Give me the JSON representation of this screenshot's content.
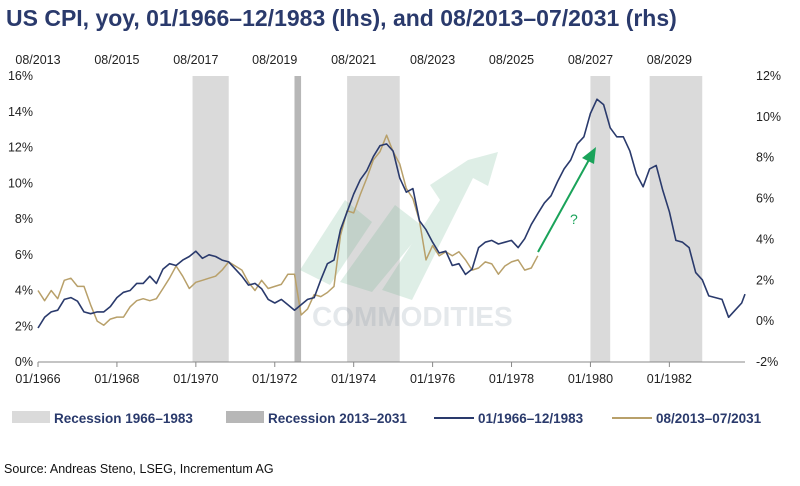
{
  "title": "US CPI, yoy, 01/1966–12/1983 (lhs), and 08/2013–07/2031 (rhs)",
  "source": "Source: Andreas Steno, LSEG, Incrementum AG",
  "watermark": "COMMODITIES",
  "annotation": "?",
  "colors": {
    "title": "#2a3a6c",
    "series_1966": "#2a3a6c",
    "series_2013": "#b8a06a",
    "recession_1966": "#dadada",
    "recession_2013": "#b7b7b7",
    "arrow": "#1aa35a"
  },
  "chart_data": {
    "type": "line",
    "x_bottom": {
      "range": [
        "01/1966",
        "12/1983"
      ],
      "ticks": [
        "01/1966",
        "01/1968",
        "01/1970",
        "01/1972",
        "01/1974",
        "01/1976",
        "01/1978",
        "01/1980",
        "01/1982"
      ]
    },
    "x_top": {
      "range": [
        "08/2013",
        "07/2031"
      ],
      "ticks": [
        "08/2013",
        "08/2015",
        "08/2017",
        "08/2019",
        "08/2021",
        "08/2023",
        "08/2025",
        "08/2027",
        "08/2029"
      ]
    },
    "y_left": {
      "range": [
        0,
        16
      ],
      "ticks": [
        "0%",
        "2%",
        "4%",
        "6%",
        "8%",
        "10%",
        "12%",
        "14%",
        "16%"
      ]
    },
    "y_right": {
      "range": [
        -2,
        12
      ],
      "ticks": [
        "-2%",
        "0%",
        "2%",
        "4%",
        "6%",
        "8%",
        "10%",
        "12%"
      ]
    },
    "recessions_1966": [
      [
        "12/1969",
        "11/1970"
      ],
      [
        "11/1973",
        "03/1975"
      ],
      [
        "01/1980",
        "07/1980"
      ],
      [
        "07/1981",
        "11/1982"
      ]
    ],
    "recessions_2013": [
      [
        "02/2020",
        "04/2020"
      ]
    ],
    "series": [
      {
        "name": "01/1966–12/1983",
        "axis": "left",
        "points": [
          [
            "1966-01",
            1.9
          ],
          [
            "1966-03",
            2.5
          ],
          [
            "1966-05",
            2.8
          ],
          [
            "1966-07",
            2.9
          ],
          [
            "1966-09",
            3.5
          ],
          [
            "1966-11",
            3.6
          ],
          [
            "1967-01",
            3.4
          ],
          [
            "1967-03",
            2.8
          ],
          [
            "1967-05",
            2.7
          ],
          [
            "1967-07",
            2.8
          ],
          [
            "1967-09",
            2.8
          ],
          [
            "1967-11",
            3.1
          ],
          [
            "1968-01",
            3.6
          ],
          [
            "1968-03",
            3.9
          ],
          [
            "1968-05",
            4.0
          ],
          [
            "1968-07",
            4.4
          ],
          [
            "1968-09",
            4.4
          ],
          [
            "1968-11",
            4.8
          ],
          [
            "1969-01",
            4.4
          ],
          [
            "1969-03",
            5.2
          ],
          [
            "1969-05",
            5.5
          ],
          [
            "1969-07",
            5.4
          ],
          [
            "1969-09",
            5.7
          ],
          [
            "1969-11",
            5.9
          ],
          [
            "1970-01",
            6.2
          ],
          [
            "1970-03",
            5.8
          ],
          [
            "1970-05",
            6.0
          ],
          [
            "1970-07",
            5.9
          ],
          [
            "1970-09",
            5.7
          ],
          [
            "1970-11",
            5.6
          ],
          [
            "1971-01",
            5.2
          ],
          [
            "1971-03",
            4.8
          ],
          [
            "1971-05",
            4.3
          ],
          [
            "1971-07",
            4.4
          ],
          [
            "1971-09",
            4.1
          ],
          [
            "1971-11",
            3.5
          ],
          [
            "1972-01",
            3.3
          ],
          [
            "1972-03",
            3.5
          ],
          [
            "1972-05",
            3.2
          ],
          [
            "1972-07",
            2.9
          ],
          [
            "1972-09",
            3.2
          ],
          [
            "1972-11",
            3.5
          ],
          [
            "1973-01",
            3.6
          ],
          [
            "1973-03",
            4.6
          ],
          [
            "1973-05",
            5.5
          ],
          [
            "1973-07",
            5.7
          ],
          [
            "1973-09",
            7.4
          ],
          [
            "1973-11",
            8.4
          ],
          [
            "1974-01",
            9.4
          ],
          [
            "1974-03",
            10.2
          ],
          [
            "1974-05",
            10.7
          ],
          [
            "1974-07",
            11.5
          ],
          [
            "1974-09",
            12.1
          ],
          [
            "1974-11",
            12.2
          ],
          [
            "1975-01",
            11.8
          ],
          [
            "1975-03",
            10.3
          ],
          [
            "1975-05",
            9.5
          ],
          [
            "1975-07",
            9.7
          ],
          [
            "1975-09",
            7.9
          ],
          [
            "1975-11",
            7.4
          ],
          [
            "1976-01",
            6.7
          ],
          [
            "1976-03",
            6.1
          ],
          [
            "1976-05",
            6.2
          ],
          [
            "1976-07",
            5.4
          ],
          [
            "1976-09",
            5.5
          ],
          [
            "1976-11",
            4.9
          ],
          [
            "1977-01",
            5.2
          ],
          [
            "1977-03",
            6.4
          ],
          [
            "1977-05",
            6.7
          ],
          [
            "1977-07",
            6.8
          ],
          [
            "1977-09",
            6.6
          ],
          [
            "1977-11",
            6.7
          ],
          [
            "1978-01",
            6.8
          ],
          [
            "1978-03",
            6.4
          ],
          [
            "1978-05",
            6.9
          ],
          [
            "1978-07",
            7.7
          ],
          [
            "1978-09",
            8.3
          ],
          [
            "1978-11",
            8.9
          ],
          [
            "1979-01",
            9.3
          ],
          [
            "1979-03",
            10.1
          ],
          [
            "1979-05",
            10.8
          ],
          [
            "1979-07",
            11.3
          ],
          [
            "1979-09",
            12.2
          ],
          [
            "1979-11",
            12.6
          ],
          [
            "1980-01",
            13.9
          ],
          [
            "1980-03",
            14.7
          ],
          [
            "1980-05",
            14.4
          ],
          [
            "1980-07",
            13.1
          ],
          [
            "1980-09",
            12.6
          ],
          [
            "1980-11",
            12.6
          ],
          [
            "1981-01",
            11.8
          ],
          [
            "1981-03",
            10.5
          ],
          [
            "1981-05",
            9.8
          ],
          [
            "1981-07",
            10.8
          ],
          [
            "1981-09",
            11.0
          ],
          [
            "1981-11",
            9.6
          ],
          [
            "1982-01",
            8.4
          ],
          [
            "1982-03",
            6.8
          ],
          [
            "1982-05",
            6.7
          ],
          [
            "1982-07",
            6.4
          ],
          [
            "1982-09",
            5.0
          ],
          [
            "1982-11",
            4.6
          ],
          [
            "1983-01",
            3.7
          ],
          [
            "1983-03",
            3.6
          ],
          [
            "1983-05",
            3.5
          ],
          [
            "1983-07",
            2.5
          ],
          [
            "1983-09",
            2.9
          ],
          [
            "1983-11",
            3.3
          ],
          [
            "1983-12",
            3.8
          ]
        ]
      },
      {
        "name": "08/2013–07/2031",
        "axis": "right",
        "points": [
          [
            "2013-08",
            1.5
          ],
          [
            "2013-10",
            1.0
          ],
          [
            "2013-12",
            1.5
          ],
          [
            "2014-02",
            1.1
          ],
          [
            "2014-04",
            2.0
          ],
          [
            "2014-06",
            2.1
          ],
          [
            "2014-08",
            1.7
          ],
          [
            "2014-10",
            1.7
          ],
          [
            "2014-12",
            0.8
          ],
          [
            "2015-02",
            0.0
          ],
          [
            "2015-04",
            -0.2
          ],
          [
            "2015-06",
            0.1
          ],
          [
            "2015-08",
            0.2
          ],
          [
            "2015-10",
            0.2
          ],
          [
            "2015-12",
            0.7
          ],
          [
            "2016-02",
            1.0
          ],
          [
            "2016-04",
            1.1
          ],
          [
            "2016-06",
            1.0
          ],
          [
            "2016-08",
            1.1
          ],
          [
            "2016-10",
            1.6
          ],
          [
            "2016-12",
            2.1
          ],
          [
            "2017-02",
            2.7
          ],
          [
            "2017-04",
            2.2
          ],
          [
            "2017-06",
            1.6
          ],
          [
            "2017-08",
            1.9
          ],
          [
            "2017-10",
            2.0
          ],
          [
            "2017-12",
            2.1
          ],
          [
            "2018-02",
            2.2
          ],
          [
            "2018-04",
            2.5
          ],
          [
            "2018-06",
            2.9
          ],
          [
            "2018-08",
            2.7
          ],
          [
            "2018-10",
            2.5
          ],
          [
            "2018-12",
            1.9
          ],
          [
            "2019-02",
            1.5
          ],
          [
            "2019-04",
            2.0
          ],
          [
            "2019-06",
            1.6
          ],
          [
            "2019-08",
            1.7
          ],
          [
            "2019-10",
            1.8
          ],
          [
            "2019-12",
            2.3
          ],
          [
            "2020-02",
            2.3
          ],
          [
            "2020-04",
            0.3
          ],
          [
            "2020-06",
            0.6
          ],
          [
            "2020-08",
            1.3
          ],
          [
            "2020-10",
            1.2
          ],
          [
            "2020-12",
            1.4
          ],
          [
            "2021-02",
            1.7
          ],
          [
            "2021-04",
            4.2
          ],
          [
            "2021-06",
            5.4
          ],
          [
            "2021-08",
            5.3
          ],
          [
            "2021-10",
            6.2
          ],
          [
            "2021-12",
            7.0
          ],
          [
            "2022-02",
            7.9
          ],
          [
            "2022-04",
            8.3
          ],
          [
            "2022-06",
            9.1
          ],
          [
            "2022-08",
            8.3
          ],
          [
            "2022-10",
            7.7
          ],
          [
            "2022-12",
            6.5
          ],
          [
            "2023-02",
            6.0
          ],
          [
            "2023-04",
            4.9
          ],
          [
            "2023-06",
            3.0
          ],
          [
            "2023-08",
            3.7
          ],
          [
            "2023-10",
            3.2
          ],
          [
            "2023-12",
            3.4
          ],
          [
            "2024-02",
            3.2
          ],
          [
            "2024-04",
            3.4
          ],
          [
            "2024-06",
            3.0
          ],
          [
            "2024-08",
            2.5
          ],
          [
            "2024-10",
            2.6
          ],
          [
            "2024-12",
            2.9
          ],
          [
            "2025-02",
            2.8
          ],
          [
            "2025-04",
            2.3
          ],
          [
            "2025-06",
            2.7
          ],
          [
            "2025-08",
            2.9
          ],
          [
            "2025-10",
            3.0
          ],
          [
            "2025-12",
            2.5
          ],
          [
            "2026-02",
            2.6
          ],
          [
            "2026-04",
            3.2
          ]
        ]
      }
    ]
  },
  "legend": [
    {
      "label": "Recession 1966–1983"
    },
    {
      "label": "Recession 2013–2031"
    },
    {
      "label": "01/1966–12/1983"
    },
    {
      "label": "08/2013–07/2031"
    }
  ]
}
